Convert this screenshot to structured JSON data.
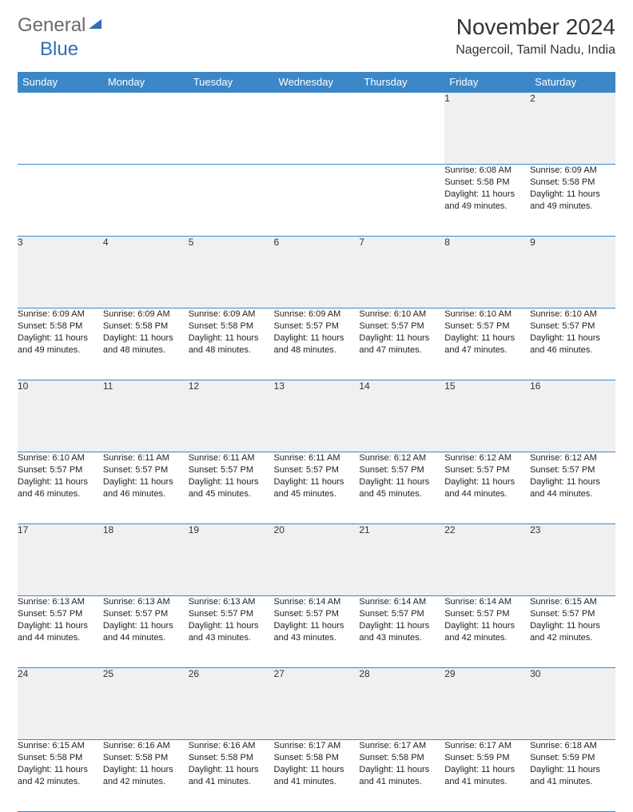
{
  "logo": {
    "general": "General",
    "blue": "Blue"
  },
  "header": {
    "month_title": "November 2024",
    "location": "Nagercoil, Tamil Nadu, India"
  },
  "colors": {
    "header_bg": "#3b87c8",
    "header_text": "#ffffff",
    "daynum_bg": "#eef0f2",
    "border": "#3b87c8",
    "logo_gray": "#6a6a6a",
    "logo_blue": "#2d6fb5"
  },
  "weekdays": [
    "Sunday",
    "Monday",
    "Tuesday",
    "Wednesday",
    "Thursday",
    "Friday",
    "Saturday"
  ],
  "weeks": [
    [
      null,
      null,
      null,
      null,
      null,
      {
        "day": "1",
        "sunrise": "Sunrise: 6:08 AM",
        "sunset": "Sunset: 5:58 PM",
        "daylight": "Daylight: 11 hours and 49 minutes."
      },
      {
        "day": "2",
        "sunrise": "Sunrise: 6:09 AM",
        "sunset": "Sunset: 5:58 PM",
        "daylight": "Daylight: 11 hours and 49 minutes."
      }
    ],
    [
      {
        "day": "3",
        "sunrise": "Sunrise: 6:09 AM",
        "sunset": "Sunset: 5:58 PM",
        "daylight": "Daylight: 11 hours and 49 minutes."
      },
      {
        "day": "4",
        "sunrise": "Sunrise: 6:09 AM",
        "sunset": "Sunset: 5:58 PM",
        "daylight": "Daylight: 11 hours and 48 minutes."
      },
      {
        "day": "5",
        "sunrise": "Sunrise: 6:09 AM",
        "sunset": "Sunset: 5:58 PM",
        "daylight": "Daylight: 11 hours and 48 minutes."
      },
      {
        "day": "6",
        "sunrise": "Sunrise: 6:09 AM",
        "sunset": "Sunset: 5:57 PM",
        "daylight": "Daylight: 11 hours and 48 minutes."
      },
      {
        "day": "7",
        "sunrise": "Sunrise: 6:10 AM",
        "sunset": "Sunset: 5:57 PM",
        "daylight": "Daylight: 11 hours and 47 minutes."
      },
      {
        "day": "8",
        "sunrise": "Sunrise: 6:10 AM",
        "sunset": "Sunset: 5:57 PM",
        "daylight": "Daylight: 11 hours and 47 minutes."
      },
      {
        "day": "9",
        "sunrise": "Sunrise: 6:10 AM",
        "sunset": "Sunset: 5:57 PM",
        "daylight": "Daylight: 11 hours and 46 minutes."
      }
    ],
    [
      {
        "day": "10",
        "sunrise": "Sunrise: 6:10 AM",
        "sunset": "Sunset: 5:57 PM",
        "daylight": "Daylight: 11 hours and 46 minutes."
      },
      {
        "day": "11",
        "sunrise": "Sunrise: 6:11 AM",
        "sunset": "Sunset: 5:57 PM",
        "daylight": "Daylight: 11 hours and 46 minutes."
      },
      {
        "day": "12",
        "sunrise": "Sunrise: 6:11 AM",
        "sunset": "Sunset: 5:57 PM",
        "daylight": "Daylight: 11 hours and 45 minutes."
      },
      {
        "day": "13",
        "sunrise": "Sunrise: 6:11 AM",
        "sunset": "Sunset: 5:57 PM",
        "daylight": "Daylight: 11 hours and 45 minutes."
      },
      {
        "day": "14",
        "sunrise": "Sunrise: 6:12 AM",
        "sunset": "Sunset: 5:57 PM",
        "daylight": "Daylight: 11 hours and 45 minutes."
      },
      {
        "day": "15",
        "sunrise": "Sunrise: 6:12 AM",
        "sunset": "Sunset: 5:57 PM",
        "daylight": "Daylight: 11 hours and 44 minutes."
      },
      {
        "day": "16",
        "sunrise": "Sunrise: 6:12 AM",
        "sunset": "Sunset: 5:57 PM",
        "daylight": "Daylight: 11 hours and 44 minutes."
      }
    ],
    [
      {
        "day": "17",
        "sunrise": "Sunrise: 6:13 AM",
        "sunset": "Sunset: 5:57 PM",
        "daylight": "Daylight: 11 hours and 44 minutes."
      },
      {
        "day": "18",
        "sunrise": "Sunrise: 6:13 AM",
        "sunset": "Sunset: 5:57 PM",
        "daylight": "Daylight: 11 hours and 44 minutes."
      },
      {
        "day": "19",
        "sunrise": "Sunrise: 6:13 AM",
        "sunset": "Sunset: 5:57 PM",
        "daylight": "Daylight: 11 hours and 43 minutes."
      },
      {
        "day": "20",
        "sunrise": "Sunrise: 6:14 AM",
        "sunset": "Sunset: 5:57 PM",
        "daylight": "Daylight: 11 hours and 43 minutes."
      },
      {
        "day": "21",
        "sunrise": "Sunrise: 6:14 AM",
        "sunset": "Sunset: 5:57 PM",
        "daylight": "Daylight: 11 hours and 43 minutes."
      },
      {
        "day": "22",
        "sunrise": "Sunrise: 6:14 AM",
        "sunset": "Sunset: 5:57 PM",
        "daylight": "Daylight: 11 hours and 42 minutes."
      },
      {
        "day": "23",
        "sunrise": "Sunrise: 6:15 AM",
        "sunset": "Sunset: 5:57 PM",
        "daylight": "Daylight: 11 hours and 42 minutes."
      }
    ],
    [
      {
        "day": "24",
        "sunrise": "Sunrise: 6:15 AM",
        "sunset": "Sunset: 5:58 PM",
        "daylight": "Daylight: 11 hours and 42 minutes."
      },
      {
        "day": "25",
        "sunrise": "Sunrise: 6:16 AM",
        "sunset": "Sunset: 5:58 PM",
        "daylight": "Daylight: 11 hours and 42 minutes."
      },
      {
        "day": "26",
        "sunrise": "Sunrise: 6:16 AM",
        "sunset": "Sunset: 5:58 PM",
        "daylight": "Daylight: 11 hours and 41 minutes."
      },
      {
        "day": "27",
        "sunrise": "Sunrise: 6:17 AM",
        "sunset": "Sunset: 5:58 PM",
        "daylight": "Daylight: 11 hours and 41 minutes."
      },
      {
        "day": "28",
        "sunrise": "Sunrise: 6:17 AM",
        "sunset": "Sunset: 5:58 PM",
        "daylight": "Daylight: 11 hours and 41 minutes."
      },
      {
        "day": "29",
        "sunrise": "Sunrise: 6:17 AM",
        "sunset": "Sunset: 5:59 PM",
        "daylight": "Daylight: 11 hours and 41 minutes."
      },
      {
        "day": "30",
        "sunrise": "Sunrise: 6:18 AM",
        "sunset": "Sunset: 5:59 PM",
        "daylight": "Daylight: 11 hours and 41 minutes."
      }
    ]
  ]
}
